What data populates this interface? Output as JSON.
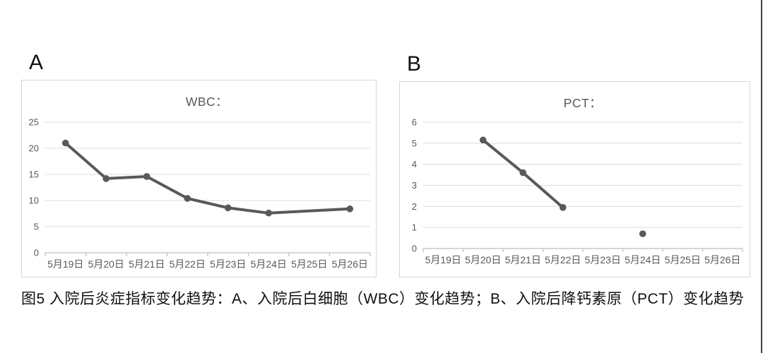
{
  "caption": {
    "text": "图5  入院后炎症指标变化趋势：A、入院后白细胞（WBC）变化趋势；B、入院后降钙素原（PCT）变化趋势"
  },
  "decor": {
    "right_edge_line_color": "#3f3f3f"
  },
  "chart_data": [
    {
      "type": "line",
      "panel_label": "A",
      "title": "WBC：",
      "categories": [
        "5月19日",
        "5月20日",
        "5月21日",
        "5月22日",
        "5月23日",
        "5月24日",
        "5月25日",
        "5月26日"
      ],
      "values": [
        21,
        14.2,
        14.6,
        10.4,
        8.6,
        7.6,
        null,
        8.4
      ],
      "connect_gaps": true,
      "ylim": [
        0,
        25
      ],
      "yticks": [
        0,
        5,
        10,
        15,
        20,
        25
      ],
      "grid": true,
      "legend": "none",
      "colors": {
        "line": "#595959",
        "grid": "#dcdcdc",
        "axis": "#bfbfbf",
        "tick_label": "#595959",
        "title": "#595959"
      }
    },
    {
      "type": "line",
      "panel_label": "B",
      "title": "PCT：",
      "categories": [
        "5月19日",
        "5月20日",
        "5月21日",
        "5月22日",
        "5月23日",
        "5月24日",
        "5月25日",
        "5月26日"
      ],
      "values": [
        null,
        5.15,
        3.6,
        1.95,
        null,
        0.7,
        null,
        null
      ],
      "connect_gaps": false,
      "ylim": [
        0,
        6
      ],
      "yticks": [
        0,
        1,
        2,
        3,
        4,
        5,
        6
      ],
      "grid": true,
      "legend": "none",
      "colors": {
        "line": "#595959",
        "grid": "#dcdcdc",
        "axis": "#bfbfbf",
        "tick_label": "#595959",
        "title": "#595959"
      }
    }
  ]
}
